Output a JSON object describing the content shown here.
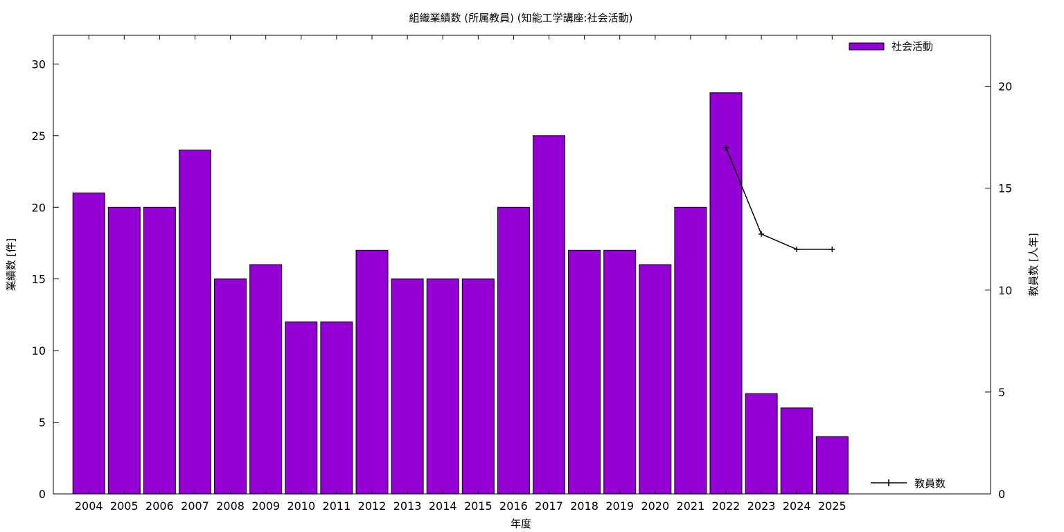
{
  "chart_data": {
    "type": "bar",
    "title": "組織業績数 (所属教員) (知能工学講座:社会活動)",
    "xlabel": "年度",
    "ylabel": "業績数 [件]",
    "y2label": "教員数 [人年]",
    "categories": [
      "2004",
      "2005",
      "2006",
      "2007",
      "2008",
      "2009",
      "2010",
      "2011",
      "2012",
      "2013",
      "2014",
      "2015",
      "2016",
      "2017",
      "2018",
      "2019",
      "2020",
      "2021",
      "2022",
      "2023",
      "2024",
      "2025"
    ],
    "series": [
      {
        "name": "社会活動",
        "type": "bar",
        "axis": "left",
        "color": "#9400d3",
        "values": [
          21,
          20,
          20,
          24,
          15,
          16,
          12,
          12,
          17,
          15,
          15,
          15,
          20,
          25,
          17,
          17,
          16,
          20,
          28,
          7,
          6,
          4
        ]
      },
      {
        "name": "教員数",
        "type": "line",
        "axis": "right",
        "color": "#000000",
        "values": [
          null,
          null,
          null,
          null,
          null,
          null,
          null,
          null,
          null,
          null,
          null,
          null,
          null,
          null,
          null,
          null,
          null,
          null,
          17,
          12.75,
          12,
          12
        ]
      }
    ],
    "ylim": [
      0,
      32
    ],
    "y2lim": [
      0,
      22.5
    ],
    "yticks": [
      "0",
      "5",
      "10",
      "15",
      "20",
      "25",
      "30"
    ],
    "y2ticks": [
      "0",
      "5",
      "10",
      "15",
      "20"
    ],
    "grid": false,
    "legend": [
      "top-right",
      "bottom-right"
    ]
  }
}
